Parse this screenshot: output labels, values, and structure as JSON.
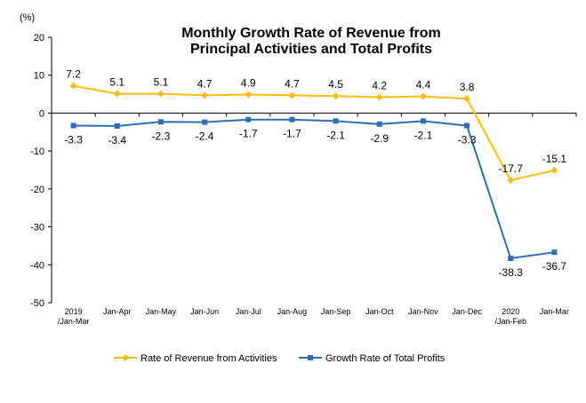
{
  "chart_data": {
    "type": "line",
    "title_line1": "Monthly Growth Rate of Revenue from",
    "title_line2": "Principal Activities  and Total Profits",
    "unit": "(%)",
    "categories": [
      [
        "2019",
        "/Jan-Mar"
      ],
      [
        "Jan-Apr"
      ],
      [
        "Jan-May"
      ],
      [
        "Jan-Jun"
      ],
      [
        "Jan-Jul"
      ],
      [
        "Jan-Aug"
      ],
      [
        "Jan-Sep"
      ],
      [
        "Jan-Oct"
      ],
      [
        "Jan-Nov"
      ],
      [
        "Jan-Dec"
      ],
      [
        "2020",
        "/Jan-Feb"
      ],
      [
        "Jan-Mar"
      ]
    ],
    "ylim": [
      -50,
      20
    ],
    "yticks": [
      20,
      10,
      0,
      -10,
      -20,
      -30,
      -40,
      -50
    ],
    "series": [
      {
        "name": "Rate of Revenue from Activities",
        "color": "#F5BE11",
        "marker": "diamond",
        "values": [
          7.2,
          5.1,
          5.1,
          4.7,
          4.9,
          4.7,
          4.5,
          4.2,
          4.4,
          3.8,
          -17.7,
          -15.1
        ],
        "labels": [
          "7.2",
          "5.1",
          "5.1",
          "4.7",
          "4.9",
          "4.7",
          "4.5",
          "4.2",
          "4.4",
          "3.8",
          "-17.7",
          "-15.1"
        ]
      },
      {
        "name": "Growth Rate of Total Profits",
        "color": "#2E6DB4",
        "marker": "square",
        "values": [
          -3.3,
          -3.4,
          -2.3,
          -2.4,
          -1.7,
          -1.7,
          -2.1,
          -2.9,
          -2.1,
          -3.3,
          -38.3,
          -36.7
        ],
        "labels": [
          "-3.3",
          "-3.4",
          "-2.3",
          "-2.4",
          "-1.7",
          "-1.7",
          "-2.1",
          "-2.9",
          "-2.1",
          "-3.3",
          "-38.3",
          "-36.7"
        ]
      }
    ],
    "legend_position": "bottom"
  }
}
